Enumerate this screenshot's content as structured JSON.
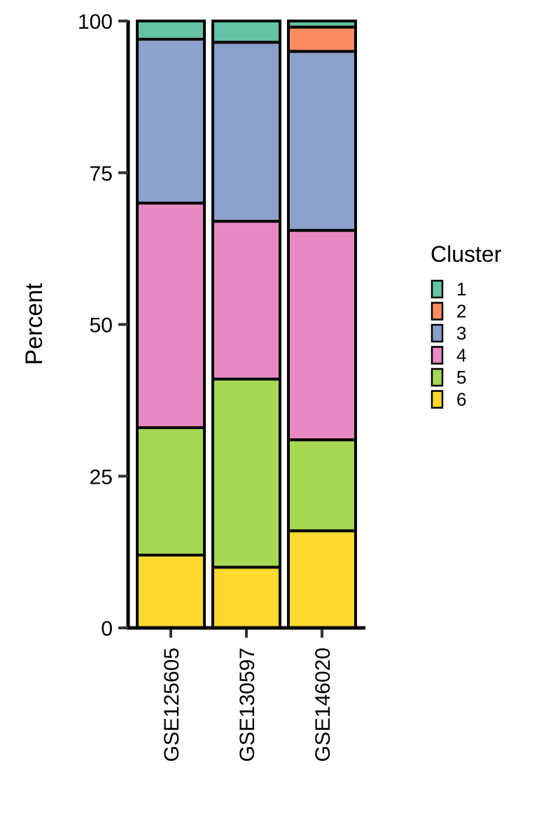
{
  "chart_data": {
    "type": "bar",
    "stacked": true,
    "title": "",
    "xlabel": "",
    "ylabel": "Percent",
    "ylim": [
      0,
      100
    ],
    "yticks": [
      "0",
      "25",
      "50",
      "75",
      "100"
    ],
    "categories": [
      "GSE125605",
      "GSE130597",
      "GSE146020"
    ],
    "legend": {
      "title": "Cluster",
      "position": "right"
    },
    "series": [
      {
        "name": "6",
        "color": "#FFD92F",
        "values": [
          12,
          10,
          16
        ]
      },
      {
        "name": "5",
        "color": "#A6D854",
        "values": [
          21,
          31,
          15
        ]
      },
      {
        "name": "4",
        "color": "#E78AC3",
        "values": [
          37,
          26,
          34.5
        ]
      },
      {
        "name": "3",
        "color": "#8DA0CB",
        "values": [
          27,
          29.5,
          29.5
        ]
      },
      {
        "name": "2",
        "color": "#FC8D62",
        "values": [
          0,
          0,
          4
        ]
      },
      {
        "name": "1",
        "color": "#66C2A5",
        "values": [
          3,
          3.5,
          1
        ]
      }
    ]
  }
}
